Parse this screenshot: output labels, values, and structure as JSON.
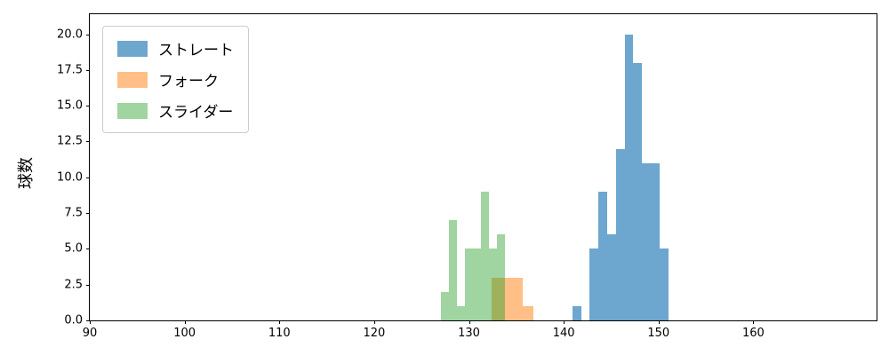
{
  "chart_data": {
    "type": "histogram",
    "title": "",
    "xlabel": "",
    "ylabel": "球数",
    "xlim": [
      90,
      173
    ],
    "ylim": [
      0,
      21.4
    ],
    "grid": false,
    "legend_position": "upper left",
    "xticks": {
      "values": [
        90,
        100,
        110,
        120,
        130,
        140,
        150,
        160
      ],
      "labels": [
        "90",
        "100",
        "110",
        "120",
        "130",
        "140",
        "150",
        "160"
      ]
    },
    "yticks": {
      "values": [
        0,
        2.5,
        5,
        7.5,
        10,
        12.5,
        15,
        17.5,
        20
      ],
      "labels": [
        "0.0",
        "2.5",
        "5.0",
        "7.5",
        "10.0",
        "12.5",
        "15.0",
        "17.5",
        "20.0"
      ]
    },
    "series": [
      {
        "name": "ストレート",
        "color": "rgba(31,119,180,0.65)",
        "legend_color": "#6da7ce",
        "bin_start": 140.9,
        "bin_width": 0.92,
        "counts": [
          1,
          0,
          5,
          9,
          6,
          12,
          20,
          18,
          11,
          11,
          5
        ]
      },
      {
        "name": "フォーク",
        "color": "rgba(255,127,14,0.5)",
        "legend_color": "#ffbf86",
        "bin_start": 132.4,
        "bin_width": 1.1,
        "counts": [
          3,
          3,
          3,
          1
        ]
      },
      {
        "name": "スライダー",
        "color": "rgba(44,160,44,0.45)",
        "legend_color": "#a0d4a0",
        "bin_start": 127.0,
        "bin_width": 0.85,
        "counts": [
          2,
          7,
          1,
          5,
          5,
          9,
          5,
          6
        ]
      }
    ]
  }
}
